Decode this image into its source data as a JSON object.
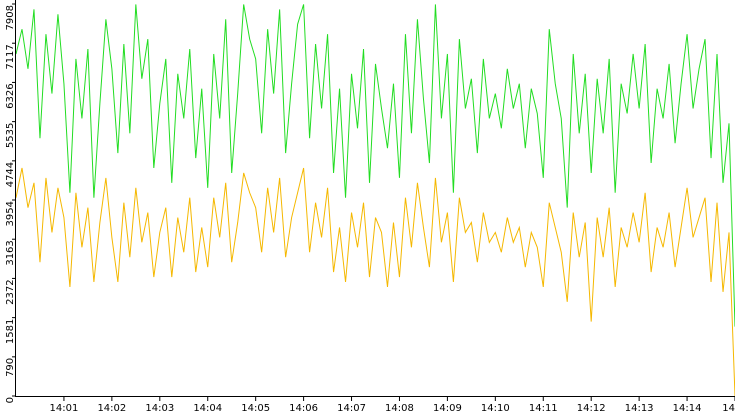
{
  "chart_data": {
    "type": "line",
    "x": [
      0,
      0.125,
      0.25,
      0.375,
      0.5,
      0.625,
      0.75,
      0.875,
      1,
      1.125,
      1.25,
      1.375,
      1.5,
      1.625,
      1.75,
      1.875,
      2,
      2.125,
      2.25,
      2.375,
      2.5,
      2.625,
      2.75,
      2.875,
      3,
      3.125,
      3.25,
      3.375,
      3.5,
      3.625,
      3.75,
      3.875,
      4,
      4.125,
      4.25,
      4.375,
      4.5,
      4.625,
      4.75,
      4.875,
      5,
      5.125,
      5.25,
      5.375,
      5.5,
      5.625,
      5.75,
      5.875,
      6,
      6.125,
      6.25,
      6.375,
      6.5,
      6.625,
      6.75,
      6.875,
      7,
      7.125,
      7.25,
      7.375,
      7.5,
      7.625,
      7.75,
      7.875,
      8,
      8.125,
      8.25,
      8.375,
      8.5,
      8.625,
      8.75,
      8.875,
      9,
      9.125,
      9.25,
      9.375,
      9.5,
      9.625,
      9.75,
      9.875,
      10,
      10.125,
      10.25,
      10.375,
      10.5,
      10.625,
      10.75,
      10.875,
      11,
      11.125,
      11.25,
      11.375,
      11.5,
      11.625,
      11.75,
      11.875,
      12,
      12.125,
      12.25,
      12.375,
      12.5,
      12.625,
      12.75,
      12.875,
      13,
      13.125,
      13.25,
      13.375,
      13.5,
      13.625,
      13.75,
      13.875,
      14,
      14.125,
      14.25,
      14.375,
      14.5,
      14.625,
      14.75,
      14.875,
      15
    ],
    "xlim": [
      0,
      15
    ],
    "xticks": [
      {
        "value": 1,
        "label": "14:01"
      },
      {
        "value": 2,
        "label": "14:02"
      },
      {
        "value": 3,
        "label": "14:03"
      },
      {
        "value": 4,
        "label": "14:04"
      },
      {
        "value": 5,
        "label": "14:05"
      },
      {
        "value": 6,
        "label": "14:06"
      },
      {
        "value": 7,
        "label": "14:07"
      },
      {
        "value": 8,
        "label": "14:08"
      },
      {
        "value": 9,
        "label": "14:09"
      },
      {
        "value": 10,
        "label": "14:10"
      },
      {
        "value": 11,
        "label": "14:11"
      },
      {
        "value": 12,
        "label": "14:12"
      },
      {
        "value": 13,
        "label": "14:13"
      },
      {
        "value": 14,
        "label": "14:14"
      },
      {
        "value": 15,
        "label": "14"
      }
    ],
    "ylim": [
      0,
      7908
    ],
    "yticks": [
      0,
      790,
      1581,
      2372,
      3163,
      3954,
      4744,
      5535,
      6326,
      7117,
      7908
    ],
    "series": [
      {
        "color": "#22dd22",
        "values": [
          6900,
          7400,
          6600,
          7800,
          5200,
          7300,
          6100,
          7700,
          6300,
          4100,
          6800,
          5600,
          7000,
          4000,
          5900,
          7600,
          6600,
          4900,
          7100,
          5300,
          7900,
          6400,
          7200,
          4600,
          5900,
          6800,
          4300,
          6500,
          5600,
          7000,
          4800,
          6200,
          4200,
          6900,
          5600,
          7600,
          4500,
          6100,
          7900,
          7200,
          6800,
          5300,
          7400,
          6100,
          7800,
          4900,
          6300,
          7500,
          7900,
          5200,
          7100,
          5800,
          7300,
          4500,
          6200,
          4000,
          6500,
          5400,
          7000,
          4300,
          6700,
          5800,
          5000,
          6300,
          4400,
          7300,
          5300,
          7600,
          6000,
          4700,
          7900,
          5600,
          6900,
          4100,
          7200,
          5800,
          6400,
          4900,
          6800,
          5600,
          6100,
          5400,
          6600,
          5800,
          6300,
          5000,
          6200,
          5700,
          4400,
          7400,
          6300,
          5600,
          3800,
          6900,
          5300,
          6500,
          4500,
          6400,
          5300,
          6800,
          4100,
          6300,
          5700,
          6900,
          5800,
          7100,
          4700,
          6200,
          5600,
          6700,
          5100,
          6300,
          7300,
          5800,
          6600,
          7200,
          4800,
          6900,
          4300,
          5500,
          1400
        ]
      },
      {
        "color": "#f5b800",
        "values": [
          4000,
          4600,
          3800,
          4300,
          2700,
          4400,
          3300,
          4200,
          3600,
          2200,
          4100,
          3000,
          3800,
          2300,
          3500,
          4400,
          3200,
          2300,
          3900,
          2800,
          4200,
          3100,
          3700,
          2400,
          3300,
          3800,
          2400,
          3600,
          2900,
          4000,
          2500,
          3400,
          2600,
          4000,
          3200,
          4300,
          2700,
          3500,
          4500,
          4100,
          3800,
          2900,
          4200,
          3300,
          4400,
          2800,
          3600,
          4100,
          4600,
          2900,
          3900,
          3200,
          4200,
          2500,
          3400,
          2300,
          3700,
          3000,
          3900,
          2400,
          3600,
          3300,
          2200,
          3500,
          2400,
          4000,
          3000,
          4300,
          3400,
          2600,
          4400,
          3100,
          3700,
          2300,
          4000,
          3300,
          3500,
          2700,
          3700,
          3100,
          3300,
          2900,
          3600,
          3100,
          3400,
          2600,
          3300,
          3000,
          2200,
          3900,
          3400,
          2900,
          1900,
          3700,
          2800,
          3500,
          1500,
          3600,
          2800,
          3800,
          2200,
          3400,
          3000,
          3700,
          3100,
          4100,
          2500,
          3400,
          3000,
          3700,
          2600,
          3400,
          4200,
          3200,
          3600,
          4000,
          2300,
          3900,
          2100,
          3300,
          0
        ]
      }
    ]
  }
}
